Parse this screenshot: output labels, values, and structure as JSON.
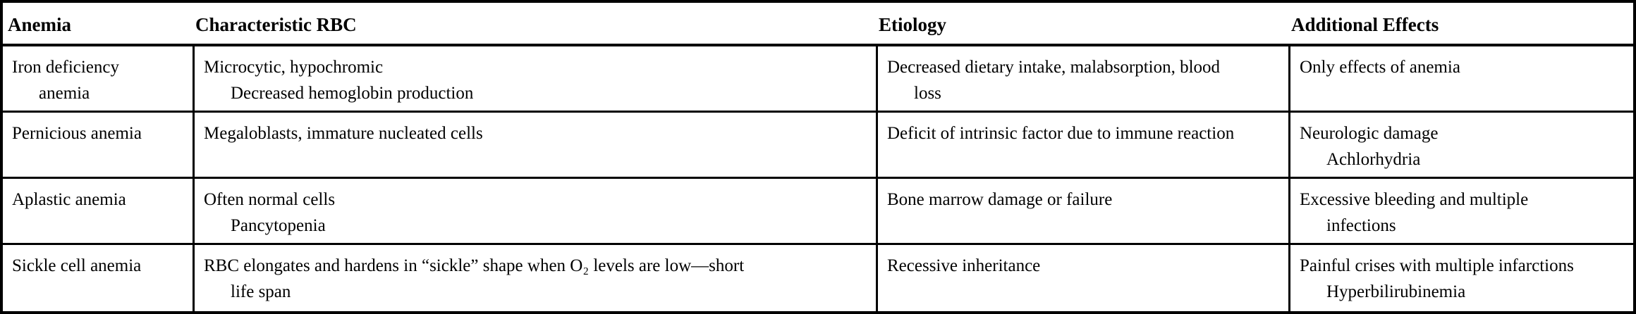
{
  "colors": {
    "border": "#000000",
    "background": "#ffffff",
    "text": "#000000"
  },
  "table": {
    "headers": {
      "anemia": "Anemia",
      "rbc": "Characteristic RBC",
      "etiology": "Etiology",
      "effects": "Additional Effects"
    },
    "rows": [
      {
        "anemia": [
          "Iron deficiency",
          "anemia"
        ],
        "rbc": [
          "Microcytic, hypochromic",
          "Decreased hemoglobin production"
        ],
        "etiology": [
          "Decreased dietary intake, malabsorption, blood",
          "loss"
        ],
        "effects": [
          "Only effects of anemia"
        ]
      },
      {
        "anemia": [
          "Pernicious anemia"
        ],
        "rbc": [
          "Megaloblasts, immature nucleated cells"
        ],
        "etiology": [
          "Deficit of intrinsic factor due to immune reaction"
        ],
        "effects": [
          "Neurologic damage",
          "Achlorhydria"
        ]
      },
      {
        "anemia": [
          "Aplastic anemia"
        ],
        "rbc": [
          "Often normal cells",
          "Pancytopenia"
        ],
        "etiology": [
          "Bone marrow damage or failure"
        ],
        "effects": [
          "Excessive bleeding and multiple",
          "infections"
        ]
      },
      {
        "anemia": [
          "Sickle cell anemia"
        ],
        "rbc": [
          "RBC elongates and hardens in “sickle” shape when O₂ levels are low—short",
          "life span"
        ],
        "etiology": [
          "Recessive inheritance"
        ],
        "effects": [
          "Painful crises with multiple infarctions",
          "Hyperbilirubinemia"
        ]
      }
    ]
  }
}
